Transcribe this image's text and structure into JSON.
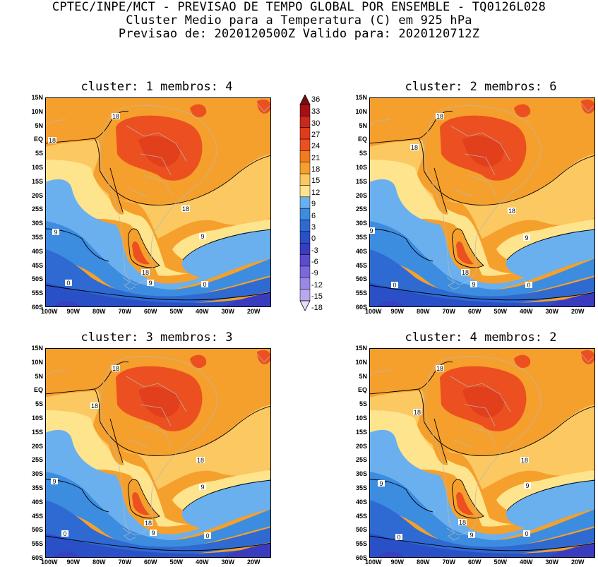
{
  "header": {
    "line1": "CPTEC/INPE/MCT - PREVISAO DE TEMPO GLOBAL POR ENSEMBLE - TQ0126L028",
    "line2": "Cluster Medio para a Temperatura (C) em 925 hPa",
    "line3": "Previsao de: 2020120500Z   Valido para: 2020120712Z"
  },
  "panels": [
    {
      "title": "cluster: 1  membros: 4",
      "labels": {
        "a": "18",
        "b": "18",
        "c": "18",
        "d": "9",
        "e": "9",
        "f": "18",
        "g": "9",
        "h": "0",
        "i": "0"
      }
    },
    {
      "title": "cluster: 2  membros: 6",
      "labels": {
        "a": "18",
        "b": "18",
        "c": "18",
        "d": "9",
        "e": "9",
        "f": "18",
        "g": "9",
        "h": "0",
        "i": "0"
      }
    },
    {
      "title": "cluster: 3  membros: 3",
      "labels": {
        "a": "18",
        "b": "18",
        "c": "18",
        "d": "9",
        "e": "9",
        "f": "18",
        "g": "9",
        "h": "0",
        "i": "0"
      }
    },
    {
      "title": "cluster: 4  membros: 2",
      "labels": {
        "a": "18",
        "b": "18",
        "c": "18",
        "d": "9",
        "e": "9",
        "f": "18",
        "g": "9",
        "h": "0",
        "i": "0"
      }
    }
  ],
  "lat_labels": [
    "15N",
    "10N",
    "5N",
    "EQ",
    "5S",
    "10S",
    "15S",
    "20S",
    "25S",
    "30S",
    "35S",
    "40S",
    "45S",
    "50S",
    "55S",
    "60S"
  ],
  "lon_labels": [
    "100W",
    "90W",
    "80W",
    "70W",
    "60W",
    "50W",
    "40W",
    "30W",
    "20W"
  ],
  "colorbar": {
    "ticks": [
      "36",
      "33",
      "30",
      "27",
      "24",
      "21",
      "18",
      "15",
      "12",
      "9",
      "6",
      "3",
      "0",
      "-3",
      "-6",
      "-9",
      "-12",
      "-15",
      "-18"
    ],
    "colors": {
      "c33": "#a50f15",
      "c30": "#c8281e",
      "c27": "#e03c1c",
      "c24": "#ec5020",
      "c21": "#f47a20",
      "c18": "#f5a02c",
      "c15": "#fbc862",
      "c12": "#fee48c",
      "c9": "#6ab0ee",
      "c6": "#3c8ce0",
      "c3": "#2e6ad2",
      "c0": "#2a50c8",
      "cm3": "#3a3cc0",
      "cm6": "#5a4ccc",
      "cm9": "#7c68da",
      "cm12": "#9a88e4",
      "cm15": "#b8a8ee",
      "cm18": "#d6ccf6"
    }
  }
}
